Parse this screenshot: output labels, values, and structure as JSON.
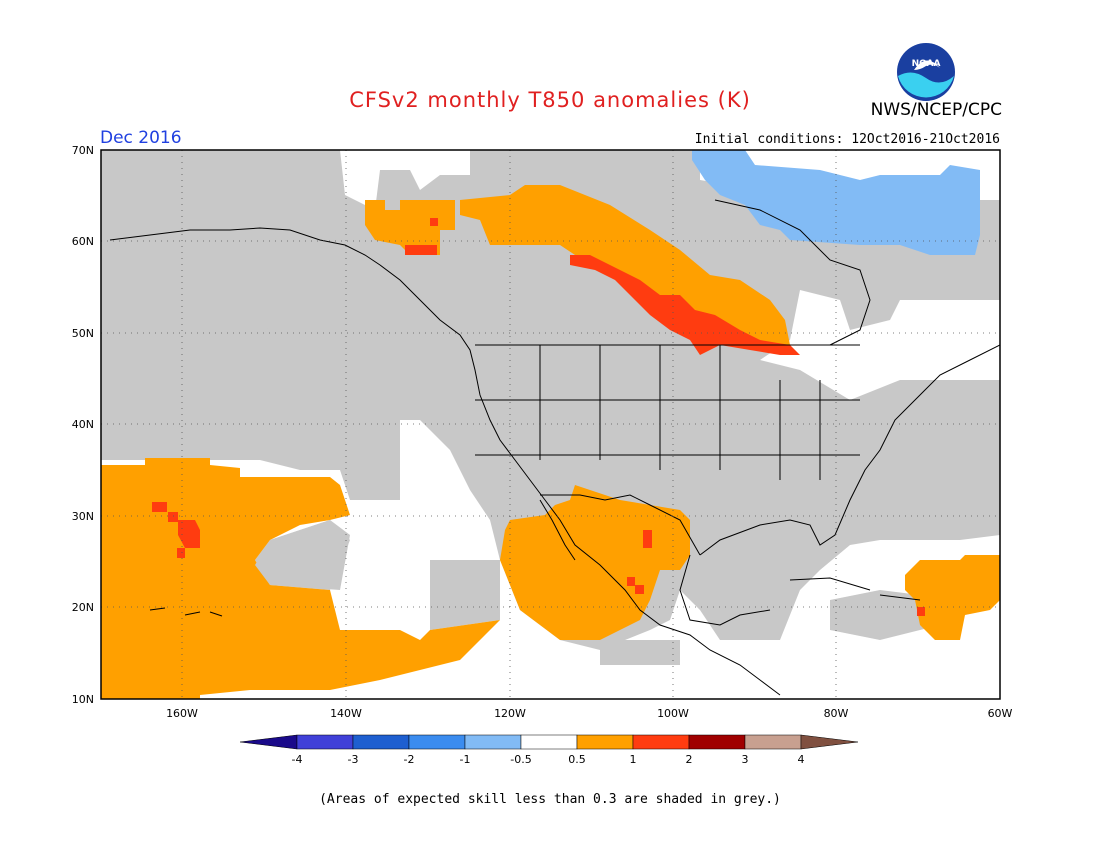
{
  "header": {
    "title": "CFSv2 monthly T850 anomalies (K)",
    "agency": "NWS/NCEP/CPC",
    "logo_text": "NOAA",
    "month": "Dec 2016",
    "initial_conditions": "Initial conditions: 12Oct2016-21Oct2016"
  },
  "map": {
    "lat_labels": [
      "70N",
      "60N",
      "50N",
      "40N",
      "30N",
      "20N",
      "10N"
    ],
    "lon_labels": [
      "160W",
      "140W",
      "120W",
      "100W",
      "80W",
      "60W"
    ],
    "lat_range": [
      10,
      70
    ],
    "lon_range": [
      -170,
      -60
    ]
  },
  "legend": {
    "ticks": [
      "-4",
      "-3",
      "-2",
      "-1",
      "-0.5",
      "0.5",
      "1",
      "2",
      "3",
      "4"
    ],
    "colors": [
      "#1a0a8a",
      "#4040d8",
      "#1e5fd0",
      "#3b8cef",
      "#82bbf5",
      "#ffffff",
      "#ffa000",
      "#ff3c10",
      "#a00000",
      "#c8a090",
      "#805040"
    ]
  },
  "footnote": "(Areas of expected skill less than 0.3 are shaded in grey.)",
  "colors": {
    "grey": "#c8c8c8",
    "orange": "#ffa000",
    "red": "#ff3c10",
    "blue": "#82bbf5",
    "title": "#e02020",
    "month": "#2040e0"
  }
}
